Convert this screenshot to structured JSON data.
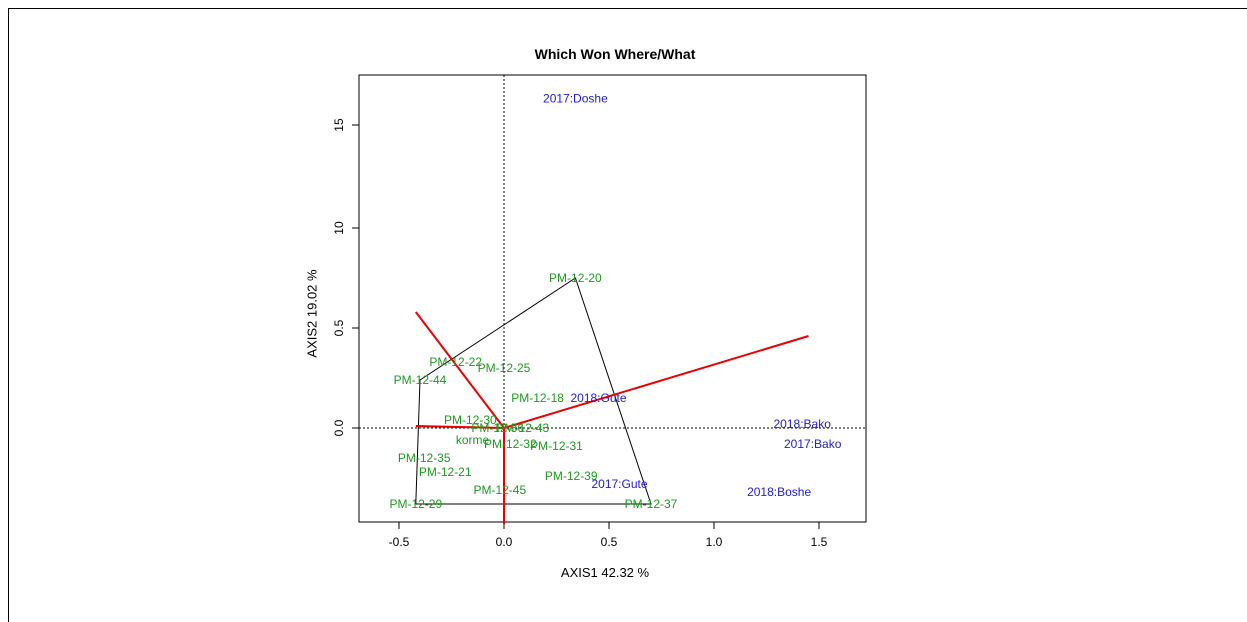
{
  "chart_data": {
    "type": "scatter",
    "title": "Which Won Where/What",
    "xlabel": "AXIS1 42.32 %",
    "ylabel": "AXIS2 19.02 %",
    "x_ticks": [
      "-0.5",
      "0.0",
      "0.5",
      "1.0",
      "1.5"
    ],
    "y_ticks": [
      "0.0",
      "0.5",
      "10",
      "15"
    ],
    "genotypes": [
      {
        "label": "PM-12-20",
        "x": 0.34,
        "y": 0.75
      },
      {
        "label": "PM-12-22",
        "x": -0.23,
        "y": 0.33
      },
      {
        "label": "PM-12-25",
        "x": 0.0,
        "y": 0.3
      },
      {
        "label": "PM-12-44",
        "x": -0.4,
        "y": 0.24
      },
      {
        "label": "PM-12-18",
        "x": 0.16,
        "y": 0.15
      },
      {
        "label": "PM-12-30",
        "x": -0.16,
        "y": 0.04
      },
      {
        "label": "PM-12-36",
        "x": -0.03,
        "y": 0.0
      },
      {
        "label": "PM-12-43",
        "x": 0.09,
        "y": 0.0
      },
      {
        "label": "korme",
        "x": -0.15,
        "y": -0.06
      },
      {
        "label": "PM-12-32",
        "x": 0.03,
        "y": -0.08
      },
      {
        "label": "PM-12-31",
        "x": 0.25,
        "y": -0.09
      },
      {
        "label": "PM-12-35",
        "x": -0.38,
        "y": -0.15
      },
      {
        "label": "PM-12-21",
        "x": -0.28,
        "y": -0.22
      },
      {
        "label": "PM-12-39",
        "x": 0.32,
        "y": -0.24
      },
      {
        "label": "PM-12-45",
        "x": -0.02,
        "y": -0.31
      },
      {
        "label": "PM-12-29",
        "x": -0.42,
        "y": -0.38
      },
      {
        "label": "PM-12-37",
        "x": 0.7,
        "y": -0.38
      }
    ],
    "environments": [
      {
        "label": "2017:Doshe",
        "x": 0.34,
        "y": 16.3
      },
      {
        "label": "2018:Gute",
        "x": 0.45,
        "y": 0.15
      },
      {
        "label": "2018:Bako",
        "x": 1.42,
        "y": 0.02
      },
      {
        "label": "2017:Bako",
        "x": 1.47,
        "y": -0.08
      },
      {
        "label": "2017:Gute",
        "x": 0.55,
        "y": -0.28
      },
      {
        "label": "2018:Boshe",
        "x": 1.31,
        "y": -0.32
      }
    ],
    "polygon": [
      [
        0.34,
        0.75
      ],
      [
        0.7,
        -0.38
      ],
      [
        -0.42,
        -0.38
      ],
      [
        -0.4,
        0.24
      ]
    ],
    "sector_lines": [
      [
        1.45,
        0.46
      ],
      [
        -0.42,
        0.58
      ],
      [
        -0.42,
        0.01
      ],
      [
        0.0,
        -0.48
      ]
    ],
    "colors": {
      "genotype": "#1f9a1f",
      "environment": "#2020d0",
      "polygon": "#000000",
      "rays": "#ee0000"
    },
    "grid": false
  }
}
